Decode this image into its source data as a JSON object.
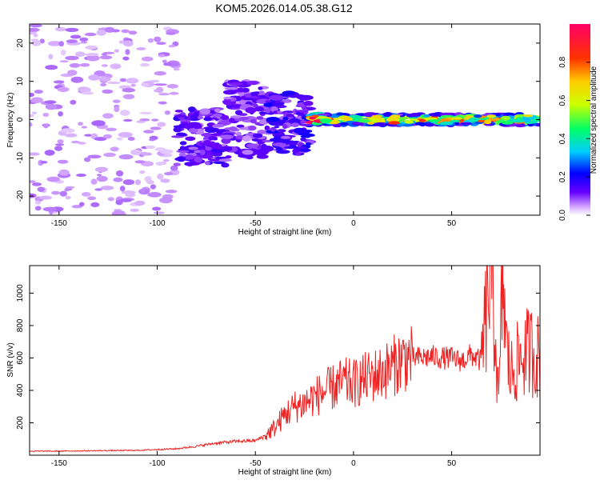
{
  "title": "KOM5.2026.014.05.38.G12",
  "chart_data": [
    {
      "type": "heatmap",
      "xlabel": "Height of straight line (km)",
      "ylabel": "Frequency (Hz)",
      "xlim": [
        -165,
        95
      ],
      "ylim": [
        -25,
        25
      ],
      "xticks": [
        -150,
        -100,
        -50,
        0,
        50
      ],
      "yticks": [
        -20,
        -10,
        0,
        10,
        20
      ],
      "colorbar": {
        "label": "Normalized spectral amplitude",
        "range": [
          0,
          1
        ],
        "ticks": [
          "0.0",
          "0.2",
          "0.4",
          "0.6",
          "0.8"
        ],
        "colors": [
          "#ffffff",
          "#cc99ff",
          "#6600ff",
          "#0000ff",
          "#00ccff",
          "#00ff66",
          "#ccff00",
          "#ffcc00",
          "#ff3300",
          "#ff0066"
        ]
      },
      "regions": [
        {
          "x_range": [
            -165,
            -90
          ],
          "freq_range": [
            -25,
            25
          ],
          "amplitude": 0.05
        },
        {
          "x_range": [
            -90,
            -65
          ],
          "freq_range": [
            -12,
            3
          ],
          "amplitude": 0.12
        },
        {
          "x_range": [
            -65,
            -45
          ],
          "freq_range": [
            -10,
            10
          ],
          "amplitude": 0.1
        },
        {
          "x_range": [
            -45,
            -22
          ],
          "freq_range": [
            -9,
            7
          ],
          "amplitude": 0.14
        },
        {
          "x_range": [
            -22,
            95
          ],
          "freq_range": [
            -1.5,
            1.5
          ],
          "amplitude": 0.6
        }
      ]
    },
    {
      "type": "line",
      "xlabel": "Height of straight line (km)",
      "ylabel": "SNR (v/v)",
      "xlim": [
        -165,
        95
      ],
      "ylim": [
        0,
        1170
      ],
      "xticks": [
        -150,
        -100,
        -50,
        0,
        50
      ],
      "yticks": [
        200,
        400,
        600,
        800,
        1000
      ],
      "color": "#ee2222",
      "series": [
        {
          "x": [
            -165,
            -150,
            -130,
            -110,
            -100,
            -90,
            -80,
            -70,
            -60,
            -50,
            -45,
            -40,
            -35,
            -30,
            -25,
            -20,
            -15,
            -10,
            -5,
            0,
            5,
            10,
            15,
            20,
            25,
            30,
            35,
            40,
            45,
            50,
            55,
            60,
            65,
            68,
            70,
            72,
            74,
            76,
            78,
            80,
            85,
            90,
            95
          ],
          "y": [
            25,
            25,
            28,
            30,
            35,
            40,
            55,
            75,
            85,
            90,
            120,
            170,
            250,
            300,
            320,
            360,
            390,
            420,
            450,
            440,
            470,
            490,
            510,
            550,
            590,
            600,
            600,
            610,
            600,
            600,
            580,
            620,
            580,
            900,
            1170,
            800,
            300,
            1120,
            650,
            500,
            600,
            650,
            600
          ]
        }
      ]
    }
  ]
}
